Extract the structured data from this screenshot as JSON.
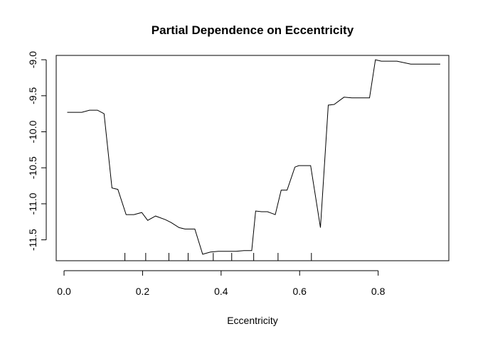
{
  "chart_data": {
    "type": "line",
    "title": "Partial Dependence on  Eccentricity",
    "xlabel": "Eccentricity",
    "ylabel": "",
    "xlim": [
      -0.02,
      0.98
    ],
    "ylim": [
      -11.79,
      -8.94
    ],
    "x_ticks": [
      0.0,
      0.2,
      0.4,
      0.6,
      0.8
    ],
    "x_tick_labels": [
      "0.0",
      "0.2",
      "0.4",
      "0.6",
      "0.8"
    ],
    "y_ticks": [
      -9.0,
      -9.5,
      -10.0,
      -10.5,
      -11.0,
      -11.5
    ],
    "y_tick_labels": [
      "-9.0",
      "-9.5",
      "-10.0",
      "-10.5",
      "-11.0",
      "-11.5"
    ],
    "grid": false,
    "series": [
      {
        "x": [
          0.008,
          0.045,
          0.065,
          0.085,
          0.102,
          0.122,
          0.137,
          0.158,
          0.178,
          0.198,
          0.213,
          0.233,
          0.258,
          0.273,
          0.293,
          0.308,
          0.333,
          0.353,
          0.373,
          0.393,
          0.418,
          0.438,
          0.458,
          0.478,
          0.488,
          0.503,
          0.518,
          0.538,
          0.553,
          0.568,
          0.588,
          0.598,
          0.613,
          0.628,
          0.653,
          0.673,
          0.688,
          0.713,
          0.733,
          0.778,
          0.793,
          0.808,
          0.848,
          0.883,
          0.958
        ],
        "y": [
          -9.73,
          -9.73,
          -9.7,
          -9.7,
          -9.75,
          -10.78,
          -10.8,
          -11.15,
          -11.15,
          -11.12,
          -11.23,
          -11.17,
          -11.22,
          -11.26,
          -11.33,
          -11.35,
          -11.35,
          -11.7,
          -11.67,
          -11.66,
          -11.66,
          -11.66,
          -11.65,
          -11.65,
          -11.1,
          -11.11,
          -11.11,
          -11.15,
          -10.81,
          -10.81,
          -10.49,
          -10.47,
          -10.47,
          -10.47,
          -11.33,
          -9.63,
          -9.62,
          -9.52,
          -9.53,
          -9.53,
          -9.0,
          -9.02,
          -9.02,
          -9.06,
          -9.06
        ]
      }
    ],
    "rug": [
      0.155,
      0.208,
      0.267,
      0.316,
      0.38,
      0.427,
      0.483,
      0.545,
      0.63
    ]
  }
}
